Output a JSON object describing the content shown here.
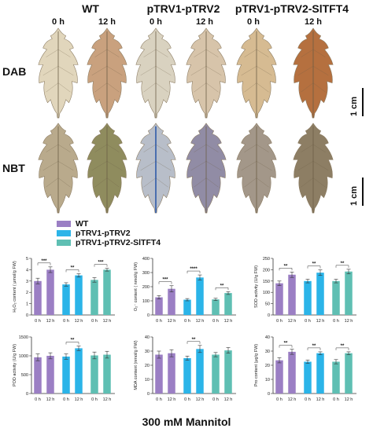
{
  "headers": {
    "wt": "WT",
    "trv2": "pTRV1-pTRV2",
    "tft4": "pTRV1-pTRV2-SlTFT4"
  },
  "time_labels": [
    "0 h",
    "12 h",
    "0 h",
    "12 h",
    "0 h",
    "12 h"
  ],
  "row_labels": {
    "dab": "DAB",
    "nbt": "NBT"
  },
  "scale_label": "1 cm",
  "legend": [
    {
      "name": "WT",
      "color": "#9b7fc4"
    },
    {
      "name": "pTRV1-pTRV2",
      "color": "#2bb4e8"
    },
    {
      "name": "pTRV1-pTRV2-SlTFT4",
      "color": "#5fbfb3"
    }
  ],
  "footer": "300 mM Mannitol",
  "leaf_colors": {
    "dab": [
      "#e1d6bc",
      "#c9a17e",
      "#d9d2c0",
      "#d7c4aa",
      "#d6bb92",
      "#b5703f"
    ],
    "nbt": [
      "#b9aa8c",
      "#8f8c5e",
      "#b8bec9",
      "#918ca5",
      "#a39789",
      "#8d7e64"
    ]
  },
  "chart_data": [
    {
      "type": "bar",
      "ylabel": "H₂O₂ content ( μmol/g FW)",
      "ylim": [
        0,
        5
      ],
      "yticks": [
        0,
        1,
        2,
        3,
        4,
        5
      ],
      "categories": [
        "0 h",
        "12 h",
        "0 h",
        "12 h",
        "0 h",
        "12 h"
      ],
      "values": [
        3.0,
        4.0,
        2.7,
        3.5,
        3.1,
        4.0
      ],
      "errors": [
        0.25,
        0.25,
        0.15,
        0.15,
        0.2,
        0.12
      ],
      "sig": [
        "***",
        "**",
        "***"
      ]
    },
    {
      "type": "bar",
      "ylabel": "O₂⁻ content ( nmol/g FW)",
      "ylim": [
        0,
        400
      ],
      "yticks": [
        0,
        100,
        200,
        300,
        400
      ],
      "categories": [
        "0 h",
        "12 h",
        "0 h",
        "12 h",
        "0 h",
        "12 h"
      ],
      "values": [
        125,
        185,
        108,
        265,
        110,
        155
      ],
      "errors": [
        12,
        22,
        8,
        18,
        8,
        10
      ],
      "sig": [
        "***",
        "****",
        "**"
      ]
    },
    {
      "type": "bar",
      "ylabel": "SOD activity (U/g FW)",
      "ylim": [
        0,
        250
      ],
      "yticks": [
        0,
        50,
        100,
        150,
        200,
        250
      ],
      "categories": [
        "0 h",
        "12 h",
        "0 h",
        "12 h",
        "0 h",
        "12 h"
      ],
      "values": [
        140,
        178,
        150,
        187,
        150,
        192
      ],
      "errors": [
        10,
        12,
        8,
        12,
        8,
        10
      ],
      "sig": [
        "**",
        "**",
        "**"
      ]
    },
    {
      "type": "bar",
      "ylabel": "POD activity (U/g FW)",
      "ylim": [
        0,
        1500
      ],
      "yticks": [
        0,
        500,
        1000,
        1500
      ],
      "categories": [
        "0 h",
        "12 h",
        "0 h",
        "12 h",
        "0 h",
        "12 h"
      ],
      "values": [
        960,
        1000,
        980,
        1200,
        1010,
        1030
      ],
      "errors": [
        90,
        80,
        70,
        60,
        90,
        90
      ],
      "sig": [
        "",
        "**",
        ""
      ]
    },
    {
      "type": "bar",
      "ylabel": "MDA content (nmol/g FW)",
      "ylim": [
        0,
        40
      ],
      "yticks": [
        0,
        10,
        20,
        30,
        40
      ],
      "categories": [
        "0 h",
        "12 h",
        "0 h",
        "12 h",
        "0 h",
        "12 h"
      ],
      "values": [
        27.5,
        28.5,
        25,
        31.5,
        27.5,
        30.5
      ],
      "errors": [
        2.5,
        2.5,
        1.5,
        2.5,
        1.5,
        2
      ],
      "sig": [
        "",
        "**",
        ""
      ]
    },
    {
      "type": "bar",
      "ylabel": "Pro content (μg/g FW)",
      "ylim": [
        0,
        40
      ],
      "yticks": [
        0,
        10,
        20,
        30,
        40
      ],
      "categories": [
        "0 h",
        "12 h",
        "0 h",
        "12 h",
        "0 h",
        "12 h"
      ],
      "values": [
        23.5,
        29.5,
        22.5,
        28.5,
        22.5,
        28.5
      ],
      "errors": [
        1.8,
        1.8,
        1.2,
        1,
        1.5,
        1
      ],
      "sig": [
        "**",
        "**",
        "**"
      ]
    }
  ]
}
